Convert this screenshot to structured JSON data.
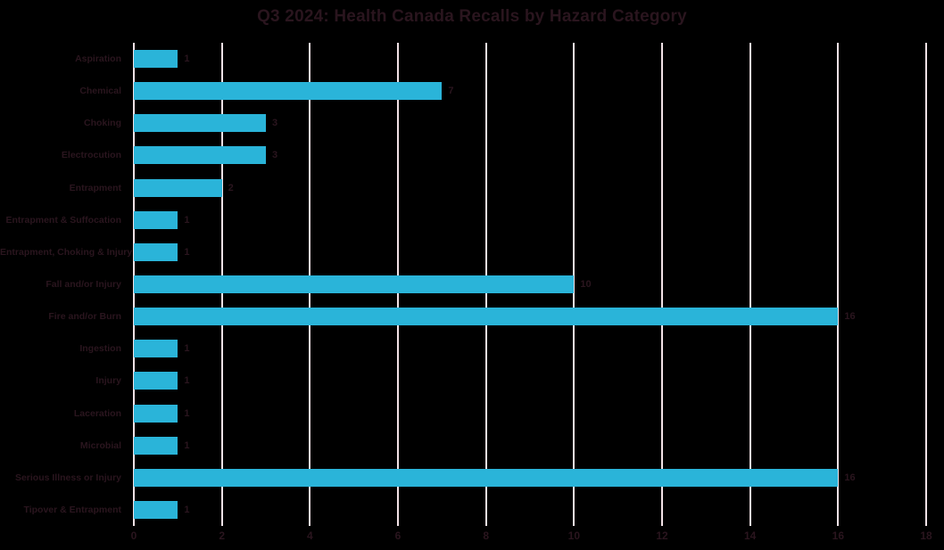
{
  "title": "Q3 2024: Health Canada Recalls by Hazard Category",
  "colors": {
    "background": "#000000",
    "bar": "#2ab4d9",
    "gridline": "#f2e2e6",
    "text": "#2a151e"
  },
  "chart_data": {
    "type": "bar",
    "orientation": "horizontal",
    "title": "Q3 2024: Health Canada Recalls by Hazard Category",
    "categories": [
      "Aspiration",
      "Chemical",
      "Choking",
      "Electrocution",
      "Entrapment",
      "Entrapment & Suffocation",
      "Entrapment, Choking & Injury",
      "Fall and/or Injury",
      "Fire and/or Burn",
      "Ingestion",
      "Injury",
      "Laceration",
      "Microbial",
      "Serious Illness or Injury",
      "Tipover & Entrapment"
    ],
    "values": [
      1,
      7,
      3,
      3,
      2,
      1,
      1,
      10,
      16,
      1,
      1,
      1,
      1,
      16,
      1
    ],
    "data_labels": [
      "1",
      "7",
      "3",
      "3",
      "2",
      "1",
      "1",
      "10",
      "16",
      "1",
      "1",
      "1",
      "1",
      "16",
      "1"
    ],
    "xlabel": "",
    "ylabel": "",
    "xlim": [
      0,
      18
    ],
    "xticks": [
      0,
      2,
      4,
      6,
      8,
      10,
      12,
      14,
      16,
      18
    ],
    "grid": "vertical-only",
    "legend": "none"
  }
}
